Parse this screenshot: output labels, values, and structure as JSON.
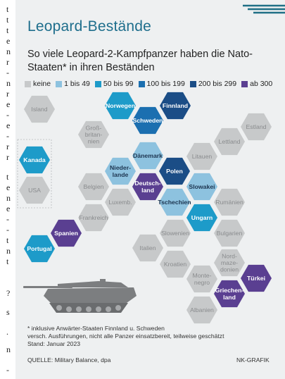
{
  "gutter_fragments": [
    "t",
    "t",
    "t",
    "e",
    "n",
    "r",
    "-",
    "n",
    "r",
    "e",
    "-",
    "e",
    "-",
    "r",
    "r",
    "t",
    "e",
    "n",
    "e",
    "-",
    "-",
    "t",
    "n",
    "t",
    "?",
    "s",
    ".",
    "n",
    "-"
  ],
  "title": "Leopard-Bestände",
  "subtitle": "So viele Leopard-2-Kampfpanzer haben die Nato-Staaten* in ihren Beständen",
  "legend": [
    {
      "label": "keine",
      "color": "#c7c9ca"
    },
    {
      "label": "1 bis 49",
      "color": "#8dc2df"
    },
    {
      "label": "50 bis 99",
      "color": "#1d9bc9"
    },
    {
      "label": "100 bis 199",
      "color": "#1b6fb0"
    },
    {
      "label": "200 bis 299",
      "color": "#1b4d86"
    },
    {
      "label": "ab 300",
      "color": "#5a3f91"
    }
  ],
  "countries": [
    {
      "lines": [
        "Island"
      ],
      "cat": 0
    },
    {
      "lines": [
        "Norwegen"
      ],
      "cat": 2
    },
    {
      "lines": [
        "Finnland"
      ],
      "cat": 4
    },
    {
      "lines": [
        "Schweden"
      ],
      "cat": 3
    },
    {
      "lines": [
        "Estland"
      ],
      "cat": 0
    },
    {
      "lines": [
        "Groß-",
        "britan-",
        "nien"
      ],
      "cat": 0
    },
    {
      "lines": [
        "Lettland"
      ],
      "cat": 0
    },
    {
      "lines": [
        "Kanada"
      ],
      "cat": 2
    },
    {
      "lines": [
        "Dänemark"
      ],
      "cat": 1
    },
    {
      "lines": [
        "Litauen"
      ],
      "cat": 0
    },
    {
      "lines": [
        "Nieder-",
        "lande"
      ],
      "cat": 1
    },
    {
      "lines": [
        "Polen"
      ],
      "cat": 4
    },
    {
      "lines": [
        "USA"
      ],
      "cat": 0
    },
    {
      "lines": [
        "Belgien"
      ],
      "cat": 0
    },
    {
      "lines": [
        "Deutsch-",
        "land"
      ],
      "cat": 5
    },
    {
      "lines": [
        "Slowakei"
      ],
      "cat": 1
    },
    {
      "lines": [
        "Luxemb."
      ],
      "cat": 0
    },
    {
      "lines": [
        "Tschechien"
      ],
      "cat": 1
    },
    {
      "lines": [
        "Rumänien"
      ],
      "cat": 0
    },
    {
      "lines": [
        "Frankreich"
      ],
      "cat": 0
    },
    {
      "lines": [
        "Ungarn"
      ],
      "cat": 2
    },
    {
      "lines": [
        "Spanien"
      ],
      "cat": 5
    },
    {
      "lines": [
        "Slowenien"
      ],
      "cat": 0
    },
    {
      "lines": [
        "Bulgarien"
      ],
      "cat": 0
    },
    {
      "lines": [
        "Portugal"
      ],
      "cat": 2
    },
    {
      "lines": [
        "Italien"
      ],
      "cat": 0
    },
    {
      "lines": [
        "Nord-",
        "maze-",
        "donien"
      ],
      "cat": 0
    },
    {
      "lines": [
        "Kroatien"
      ],
      "cat": 0
    },
    {
      "lines": [
        "Türkei"
      ],
      "cat": 5
    },
    {
      "lines": [
        "Monte-",
        "negro"
      ],
      "cat": 0
    },
    {
      "lines": [
        "Griechen-",
        "land"
      ],
      "cat": 5
    },
    {
      "lines": [
        "Albanien"
      ],
      "cat": 0
    }
  ],
  "notes": [
    "* inklusive Anwärter-Staaten Finnland u. Schweden",
    "versch. Ausführungen, nicht alle Panzer einsatzbereit, teilweise geschätzt",
    "Stand: Januar 2023"
  ],
  "source": "QUELLE: Military Balance, dpa",
  "credit": "NK-GRAFIK"
}
